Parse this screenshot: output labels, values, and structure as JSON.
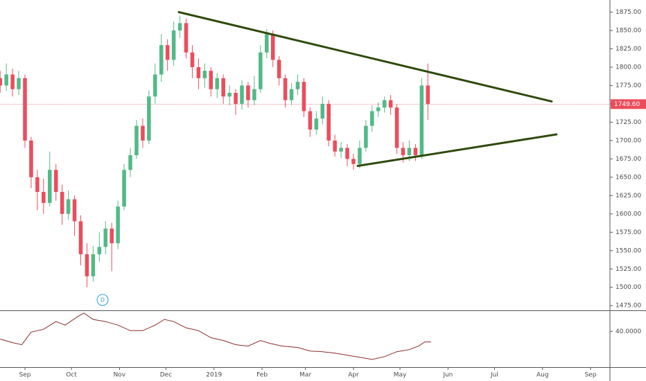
{
  "chart_data": {
    "type": "candlestick",
    "up_color": "#53b987",
    "down_color": "#eb4d5c",
    "x": [
      -16,
      -12,
      -8,
      -4,
      0,
      4,
      8,
      12,
      16,
      20,
      24,
      28,
      32,
      36,
      40,
      44,
      48,
      52,
      56,
      60,
      64,
      68,
      72,
      76,
      80,
      84,
      88,
      92,
      96,
      100,
      104,
      108,
      112,
      116,
      120,
      124,
      128,
      132,
      136,
      140,
      144,
      148,
      152,
      156,
      160,
      164,
      168,
      172,
      176,
      180,
      184,
      188,
      192,
      196,
      200,
      204,
      208,
      212,
      216,
      220,
      224,
      228,
      232,
      236,
      240,
      244,
      248,
      252,
      256,
      260
    ],
    "open": [
      1785,
      1775,
      1790,
      1770,
      1785,
      1700,
      1650,
      1630,
      1615,
      1660,
      1630,
      1600,
      1620,
      1590,
      1545,
      1515,
      1545,
      1555,
      1580,
      1560,
      1610,
      1660,
      1680,
      1720,
      1700,
      1760,
      1790,
      1830,
      1810,
      1850,
      1860,
      1820,
      1800,
      1785,
      1795,
      1770,
      1785,
      1760,
      1765,
      1750,
      1775,
      1755,
      1770,
      1820,
      1845,
      1810,
      1785,
      1755,
      1770,
      1780,
      1740,
      1715,
      1730,
      1750,
      1700,
      1685,
      1690,
      1675,
      1668,
      1690,
      1720,
      1740,
      1745,
      1755,
      1745,
      1690,
      1680,
      1690,
      1680,
      1775
    ],
    "high": [
      1795,
      1805,
      1798,
      1795,
      1790,
      1705,
      1660,
      1648,
      1685,
      1668,
      1640,
      1632,
      1625,
      1598,
      1560,
      1556,
      1575,
      1590,
      1588,
      1618,
      1668,
      1690,
      1728,
      1730,
      1768,
      1805,
      1845,
      1838,
      1862,
      1870,
      1866,
      1830,
      1812,
      1805,
      1800,
      1792,
      1790,
      1775,
      1770,
      1782,
      1780,
      1788,
      1830,
      1852,
      1850,
      1815,
      1790,
      1778,
      1790,
      1785,
      1745,
      1740,
      1760,
      1755,
      1708,
      1698,
      1695,
      1682,
      1700,
      1728,
      1748,
      1752,
      1760,
      1762,
      1750,
      1698,
      1700,
      1695,
      1785,
      1805
    ],
    "low": [
      1765,
      1768,
      1760,
      1762,
      1690,
      1635,
      1605,
      1600,
      1610,
      1618,
      1585,
      1592,
      1570,
      1530,
      1500,
      1508,
      1535,
      1545,
      1522,
      1552,
      1605,
      1650,
      1675,
      1690,
      1695,
      1750,
      1780,
      1795,
      1802,
      1840,
      1812,
      1785,
      1770,
      1772,
      1760,
      1758,
      1750,
      1748,
      1735,
      1742,
      1745,
      1748,
      1765,
      1812,
      1800,
      1775,
      1745,
      1748,
      1762,
      1732,
      1705,
      1708,
      1722,
      1692,
      1678,
      1676,
      1665,
      1660,
      1662,
      1685,
      1712,
      1732,
      1738,
      1735,
      1682,
      1670,
      1672,
      1672,
      1675,
      1728
    ],
    "close": [
      1775,
      1790,
      1770,
      1785,
      1700,
      1650,
      1630,
      1615,
      1660,
      1630,
      1600,
      1620,
      1590,
      1545,
      1515,
      1545,
      1555,
      1580,
      1560,
      1610,
      1660,
      1680,
      1720,
      1700,
      1760,
      1790,
      1830,
      1810,
      1850,
      1860,
      1820,
      1800,
      1785,
      1795,
      1770,
      1785,
      1760,
      1765,
      1750,
      1775,
      1755,
      1770,
      1820,
      1845,
      1810,
      1785,
      1755,
      1770,
      1780,
      1740,
      1715,
      1730,
      1750,
      1700,
      1685,
      1690,
      1675,
      1668,
      1690,
      1720,
      1740,
      1745,
      1755,
      1745,
      1690,
      1680,
      1690,
      1680,
      1775,
      1750
    ],
    "xlim": [
      -16.1,
      377.5
    ],
    "xticks": [
      {
        "value": 0,
        "label": "Sep"
      },
      {
        "value": 30,
        "label": "Oct"
      },
      {
        "value": 61,
        "label": "Nov"
      },
      {
        "value": 91,
        "label": "Dec"
      },
      {
        "value": 122,
        "label": "2019"
      },
      {
        "value": 153,
        "label": "Feb"
      },
      {
        "value": 181,
        "label": "Mar"
      },
      {
        "value": 212,
        "label": "Apr"
      },
      {
        "value": 242,
        "label": "May"
      },
      {
        "value": 273,
        "label": "Jun"
      },
      {
        "value": 303,
        "label": "Jul"
      },
      {
        "value": 334,
        "label": "Aug"
      },
      {
        "value": 365,
        "label": "Sep"
      }
    ],
    "ylim": [
      1468.6,
      1891.5
    ],
    "yticks": [
      {
        "value": 1475,
        "label": "1475.00"
      },
      {
        "value": 1500,
        "label": "1500.00"
      },
      {
        "value": 1525,
        "label": "1525.00"
      },
      {
        "value": 1550,
        "label": "1550.00"
      },
      {
        "value": 1575,
        "label": "1575.00"
      },
      {
        "value": 1600,
        "label": "1600.00"
      },
      {
        "value": 1625,
        "label": "1625.00"
      },
      {
        "value": 1650,
        "label": "1650.00"
      },
      {
        "value": 1675,
        "label": "1675.00"
      },
      {
        "value": 1700,
        "label": "1700.00"
      },
      {
        "value": 1725,
        "label": "1725.00"
      },
      {
        "value": 1750,
        "label": "1750.00"
      },
      {
        "value": 1775,
        "label": "1775.00"
      },
      {
        "value": 1800,
        "label": "1800.00"
      },
      {
        "value": 1825,
        "label": "1825.00"
      },
      {
        "value": 1850,
        "label": "1850.00"
      },
      {
        "value": 1875,
        "label": "1875.00"
      }
    ],
    "last_price": {
      "value": 1749.6,
      "label": "1749.60"
    },
    "last_price_color": "#eb4d5c",
    "trendlines": [
      {
        "x": [
          99.3,
          339.9
        ],
        "y": [
          1875,
          1753.3
        ]
      },
      {
        "x": [
          214.7,
          343
        ],
        "y": [
          1665.4,
          1708.4
        ]
      }
    ],
    "trendline_color": "#2e4a0b",
    "marker_label": "D",
    "indicator": {
      "color": "#8b2a2a",
      "x": [
        -16,
        -8,
        -2,
        4,
        12,
        20,
        26,
        34,
        38,
        44,
        52,
        60,
        68,
        76,
        84,
        90,
        96,
        104,
        112,
        120,
        128,
        136,
        144,
        152,
        158,
        166,
        176,
        184,
        192,
        200,
        208,
        216,
        224,
        232,
        240,
        248,
        254,
        258,
        262
      ],
      "values": [
        37.8,
        36.8,
        36.2,
        39.8,
        40.6,
        42.8,
        41.8,
        44.2,
        45.2,
        43.4,
        42.8,
        41.8,
        40.2,
        40.2,
        41.8,
        43.4,
        42.8,
        41,
        40.2,
        38.2,
        37.4,
        36.2,
        35.8,
        37.4,
        36.6,
        35.8,
        35.4,
        34.4,
        34.2,
        33.8,
        33.2,
        32.6,
        32,
        32.8,
        34.2,
        34.8,
        35.8,
        37,
        37
      ],
      "ylim": [
        29.8,
        45.8
      ],
      "yticks": [
        {
          "value": 40,
          "label": "40.0000"
        }
      ]
    }
  }
}
